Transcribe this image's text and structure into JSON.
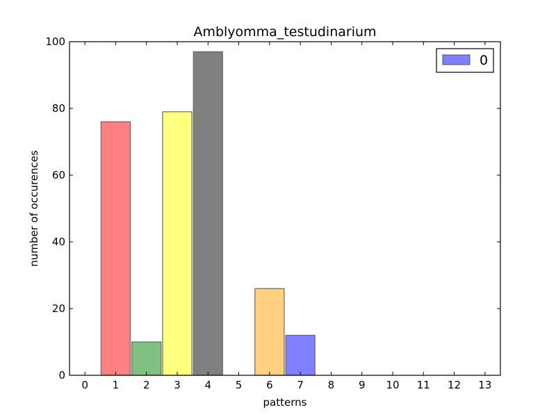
{
  "chart_data": {
    "type": "bar",
    "title": "Amblyomma_testudinarium",
    "xlabel": "patterns",
    "ylabel": "number of occurences",
    "xlim": [
      -0.5,
      13.5
    ],
    "ylim": [
      0,
      100
    ],
    "x_ticks": [
      "0",
      "1",
      "2",
      "3",
      "4",
      "5",
      "6",
      "7",
      "8",
      "9",
      "10",
      "11",
      "12",
      "13"
    ],
    "y_ticks": [
      "0",
      "20",
      "40",
      "60",
      "80",
      "100"
    ],
    "bars": [
      {
        "x": 1,
        "value": 76,
        "color": "#ff8080"
      },
      {
        "x": 2,
        "value": 10,
        "color": "#80c080"
      },
      {
        "x": 3,
        "value": 79,
        "color": "#ffff80"
      },
      {
        "x": 4,
        "value": 97,
        "color": "#808080"
      },
      {
        "x": 6,
        "value": 26,
        "color": "#ffd080"
      },
      {
        "x": 7,
        "value": 12,
        "color": "#8080ff"
      }
    ],
    "bar_edge_color": "#666666",
    "grid": false,
    "legend": {
      "position": "top-right",
      "entries": [
        {
          "label": "0",
          "color": "#8080ff"
        }
      ]
    }
  }
}
